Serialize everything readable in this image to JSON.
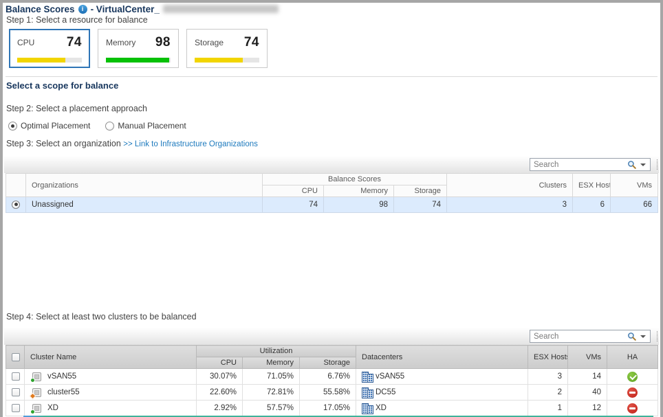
{
  "title": {
    "product": "Balance Scores",
    "suffix": "- VirtualCenter_"
  },
  "steps": {
    "step1": "Step 1: Select a resource for balance",
    "step2": "Step 2: Select a placement approach",
    "step3": "Step 3: Select an organization",
    "step3_link": ">> Link to Infrastructure Organizations",
    "step4": "Step 4: Select at least two clusters to be balanced"
  },
  "scope_heading": "Select a scope for balance",
  "resource_cards": [
    {
      "label": "CPU",
      "value": 74,
      "color": "#f2d500",
      "state": "selected"
    },
    {
      "label": "Memory",
      "value": 98,
      "color": "#06c106",
      "state": ""
    },
    {
      "label": "Storage",
      "value": 74,
      "color": "#f2d500",
      "state": ""
    }
  ],
  "placement_options": [
    {
      "label": "Optimal Placement",
      "state": "checked"
    },
    {
      "label": "Manual Placement",
      "state": ""
    }
  ],
  "search": {
    "placeholder": "Search"
  },
  "organizations_table": {
    "headers": {
      "organizations": "Organizations",
      "group": "Balance Scores",
      "cpu": "CPU",
      "memory": "Memory",
      "storage": "Storage",
      "clusters": "Clusters",
      "esx_hosts": "ESX Hosts",
      "vms": "VMs"
    },
    "rows": [
      {
        "state": "checked",
        "name": "Unassigned",
        "cpu": 74,
        "memory": 98,
        "storage": 74,
        "clusters": 3,
        "esx_hosts": 6,
        "vms": 66
      }
    ]
  },
  "clusters_table": {
    "headers": {
      "cluster_name": "Cluster Name",
      "group": "Utilization",
      "cpu": "CPU",
      "memory": "Memory",
      "storage": "Storage",
      "datacenters": "Datacenters",
      "esx_hosts": "ESX Hosts",
      "vms": "VMs",
      "ha": "HA"
    },
    "rows": [
      {
        "status": "ok",
        "name": "vSAN55",
        "cpu": "30.07%",
        "memory": "71.05%",
        "storage": "6.76%",
        "datacenter": "vSAN55",
        "esx_hosts": 3,
        "vms": 14,
        "ha": "on"
      },
      {
        "status": "warn",
        "name": "cluster55",
        "cpu": "22.60%",
        "memory": "72.81%",
        "storage": "55.58%",
        "datacenter": "DC55",
        "esx_hosts": 2,
        "vms": 40,
        "ha": "off"
      },
      {
        "status": "ok",
        "name": "XD",
        "cpu": "2.92%",
        "memory": "57.57%",
        "storage": "17.05%",
        "datacenter": "XD",
        "esx_hosts": 1,
        "vms": 12,
        "ha": "off"
      }
    ]
  }
}
